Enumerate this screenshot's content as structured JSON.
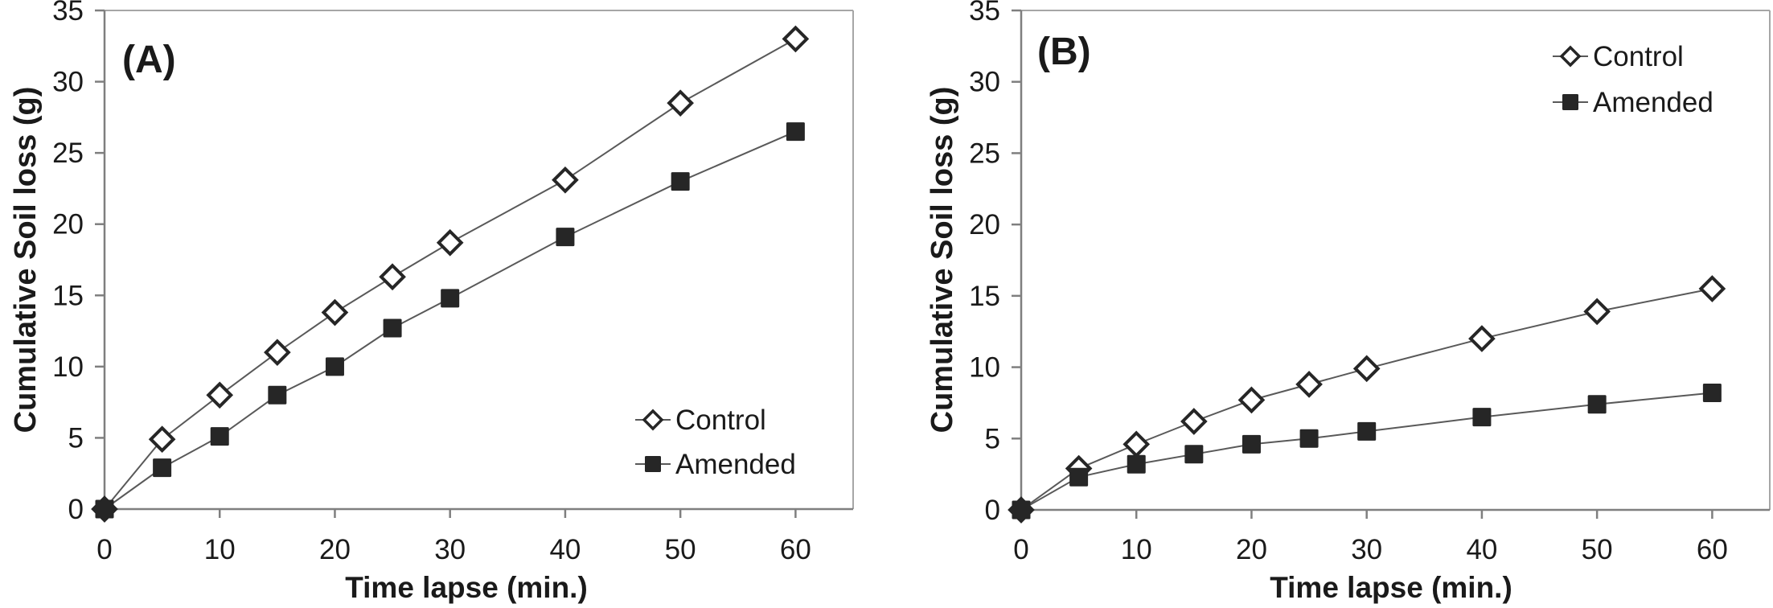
{
  "figure": {
    "description": "Two-panel line chart figure of cumulative soil loss over time",
    "panels": [
      "(A)",
      "(B)"
    ]
  },
  "colors": {
    "marker": "#262626",
    "line": "#595959",
    "axis": "#7f7f7f",
    "border": "#a6a6a6",
    "text": "#1a1a1a",
    "background": "#ffffff"
  },
  "chart_data": [
    {
      "type": "line",
      "panel_label": "(A)",
      "xlabel": "Time lapse (min.)",
      "ylabel": "Cumulative Soil loss (g)",
      "x": [
        0,
        5,
        10,
        15,
        20,
        25,
        30,
        40,
        50,
        60
      ],
      "series": [
        {
          "name": "Control",
          "marker": "open-diamond",
          "values": [
            0,
            4.9,
            8.0,
            11.0,
            13.8,
            16.3,
            18.7,
            23.1,
            28.5,
            33.0
          ]
        },
        {
          "name": "Amended",
          "marker": "filled-square",
          "values": [
            0,
            2.9,
            5.1,
            8.0,
            10.0,
            12.7,
            14.8,
            19.1,
            23.0,
            26.5
          ]
        }
      ],
      "xlim": [
        0,
        65
      ],
      "ylim": [
        0,
        35
      ],
      "xticks": [
        0,
        10,
        20,
        30,
        40,
        50,
        60
      ],
      "yticks": [
        0,
        5,
        10,
        15,
        20,
        25,
        30,
        35
      ],
      "grid": false,
      "legend_position": "inside-bottom-right"
    },
    {
      "type": "line",
      "panel_label": "(B)",
      "xlabel": "Time lapse (min.)",
      "ylabel": "Cumulative Soil loss (g)",
      "x": [
        0,
        5,
        10,
        15,
        20,
        25,
        30,
        40,
        50,
        60
      ],
      "series": [
        {
          "name": "Control",
          "marker": "open-diamond",
          "values": [
            0,
            2.9,
            4.6,
            6.2,
            7.7,
            8.8,
            9.9,
            12.0,
            13.9,
            15.5
          ]
        },
        {
          "name": "Amended",
          "marker": "filled-square",
          "values": [
            0,
            2.3,
            3.2,
            3.9,
            4.6,
            5.0,
            5.5,
            6.5,
            7.4,
            8.2
          ]
        }
      ],
      "xlim": [
        0,
        65
      ],
      "ylim": [
        0,
        35
      ],
      "xticks": [
        0,
        10,
        20,
        30,
        40,
        50,
        60
      ],
      "yticks": [
        0,
        5,
        10,
        15,
        20,
        25,
        30,
        35
      ],
      "grid": false,
      "legend_position": "inside-top-right"
    }
  ]
}
